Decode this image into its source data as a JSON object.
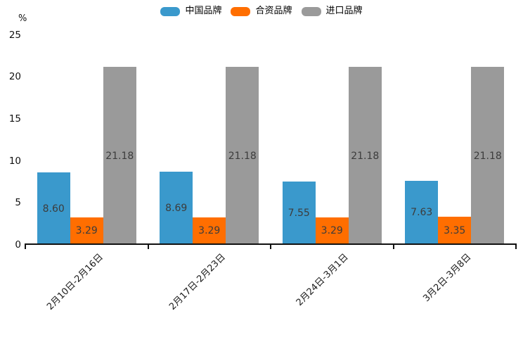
{
  "chart_data": {
    "type": "bar",
    "title": "",
    "xlabel": "",
    "ylabel": "%",
    "categories": [
      "2月10日-2月16日",
      "2月17日-2月23日",
      "2月24日-3月1日",
      "3月2日-3月8日"
    ],
    "series": [
      {
        "name": "中国品牌",
        "color": "#3A99CC",
        "values": [
          8.6,
          8.69,
          7.55,
          7.63
        ]
      },
      {
        "name": "合资品牌",
        "color": "#FF6E00",
        "values": [
          3.29,
          3.29,
          3.29,
          3.35
        ]
      },
      {
        "name": "进口品牌",
        "color": "#9A9A9A",
        "values": [
          21.18,
          21.18,
          21.18,
          21.18
        ]
      }
    ],
    "ylim": [
      0,
      25
    ],
    "yticks": [
      0,
      5,
      10,
      15,
      20,
      25
    ],
    "grid": false,
    "legend_position": "top",
    "value_labels": true,
    "value_label_decimals": 2,
    "axis_color": "#111111",
    "value_label_color": "#3c3c3c"
  }
}
